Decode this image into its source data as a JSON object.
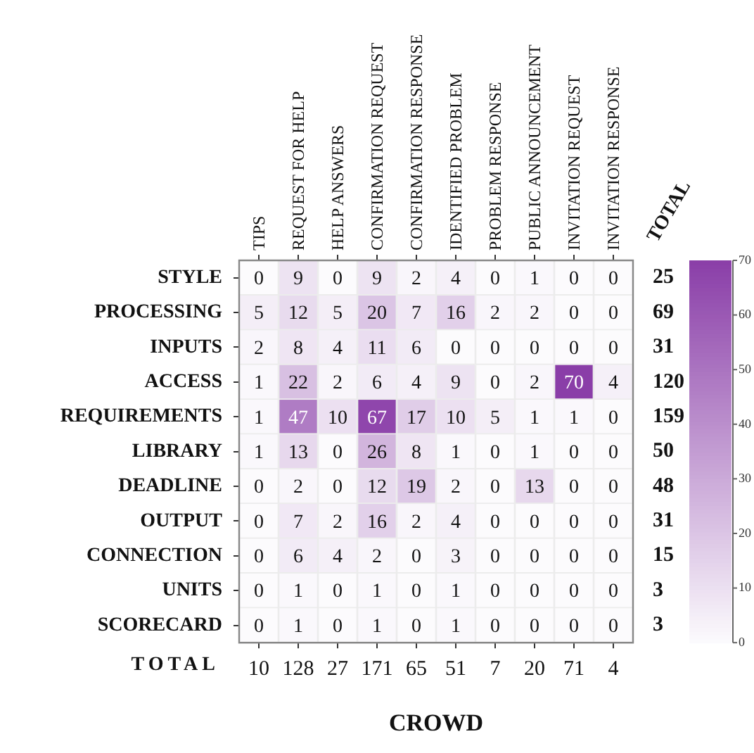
{
  "chart_data": {
    "type": "heatmap",
    "xlabel": "CROWD",
    "categories": [
      "TIPS",
      "REQUEST FOR HELP",
      "HELP ANSWERS",
      "CONFIRMATION REQUEST",
      "CONFIRMATION RESPONSE",
      "IDENTIFIED PROBLEM",
      "PROBLEM RESPONSE",
      "PUBLIC ANNOUNCEMENT",
      "INVITATION REQUEST",
      "INVITATION RESPONSE"
    ],
    "y_categories": [
      "STYLE",
      "PROCESSING",
      "INPUTS",
      "ACCESS",
      "REQUIREMENTS",
      "LIBRARY",
      "DEADLINE",
      "OUTPUT",
      "CONNECTION",
      "UNITS",
      "SCORECARD"
    ],
    "y2_categories": [
      "25",
      "69",
      "31",
      "120",
      "159",
      "50",
      "48",
      "31",
      "15",
      "3",
      "3"
    ],
    "totals": [
      "10",
      "128",
      "27",
      "171",
      "65",
      "51",
      "7",
      "20",
      "71",
      "4"
    ],
    "annotations": [
      "TOTAL",
      "TOTAL"
    ],
    "cells": [
      [
        0,
        9,
        0,
        9,
        2,
        4,
        0,
        1,
        0,
        0
      ],
      [
        5,
        12,
        5,
        20,
        7,
        16,
        2,
        2,
        0,
        0
      ],
      [
        2,
        8,
        4,
        11,
        6,
        0,
        0,
        0,
        0,
        0
      ],
      [
        1,
        22,
        2,
        6,
        4,
        9,
        0,
        2,
        70,
        4
      ],
      [
        1,
        47,
        10,
        67,
        17,
        10,
        5,
        1,
        1,
        0
      ],
      [
        1,
        13,
        0,
        26,
        8,
        1,
        0,
        1,
        0,
        0
      ],
      [
        0,
        2,
        0,
        12,
        19,
        2,
        0,
        13,
        0,
        0
      ],
      [
        0,
        7,
        2,
        16,
        2,
        4,
        0,
        0,
        0,
        0
      ],
      [
        0,
        6,
        4,
        2,
        0,
        3,
        0,
        0,
        0,
        0
      ],
      [
        0,
        1,
        0,
        1,
        0,
        1,
        0,
        0,
        0,
        0
      ],
      [
        0,
        1,
        0,
        1,
        0,
        1,
        0,
        0,
        0,
        0
      ]
    ],
    "data_labels": true,
    "clim": [
      0,
      70
    ],
    "cticks": [
      0,
      10,
      20,
      30,
      40,
      50,
      60,
      70
    ],
    "colors": [
      "#fcfbfd",
      "#8a3ea8"
    ]
  }
}
